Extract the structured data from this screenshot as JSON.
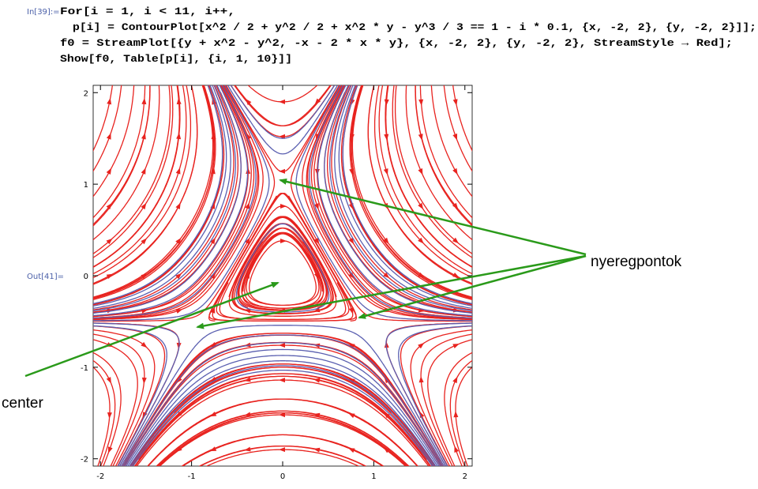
{
  "input_label": "In[39]:=",
  "code": [
    "For[i = 1, i < 11, i++,",
    "p[i] = ContourPlot[x^2 / 2 + y^2 / 2 + x^2 * y - y^3 / 3 == 1 - i * 0.1, {x, -2, 2}, {y, -2, 2}]];",
    "f0 = StreamPlot[{y + x^2 - y^2, -x - 2 * x * y}, {x, -2, 2}, {y, -2, 2}, StreamStyle → Red];",
    "Show[f0, Table[p[i], {i, 1, 10}]]"
  ],
  "output_label": "Out[41]=",
  "plot": {
    "xlim": [
      -2.08,
      2.08
    ],
    "ylim": [
      -2.08,
      2.08
    ],
    "xticks": [
      -2,
      -1,
      0,
      1,
      2
    ],
    "yticks": [
      -2,
      -1,
      0,
      1,
      2
    ]
  },
  "annotations": {
    "saddle": "nyeregpontok",
    "center": "center"
  }
}
